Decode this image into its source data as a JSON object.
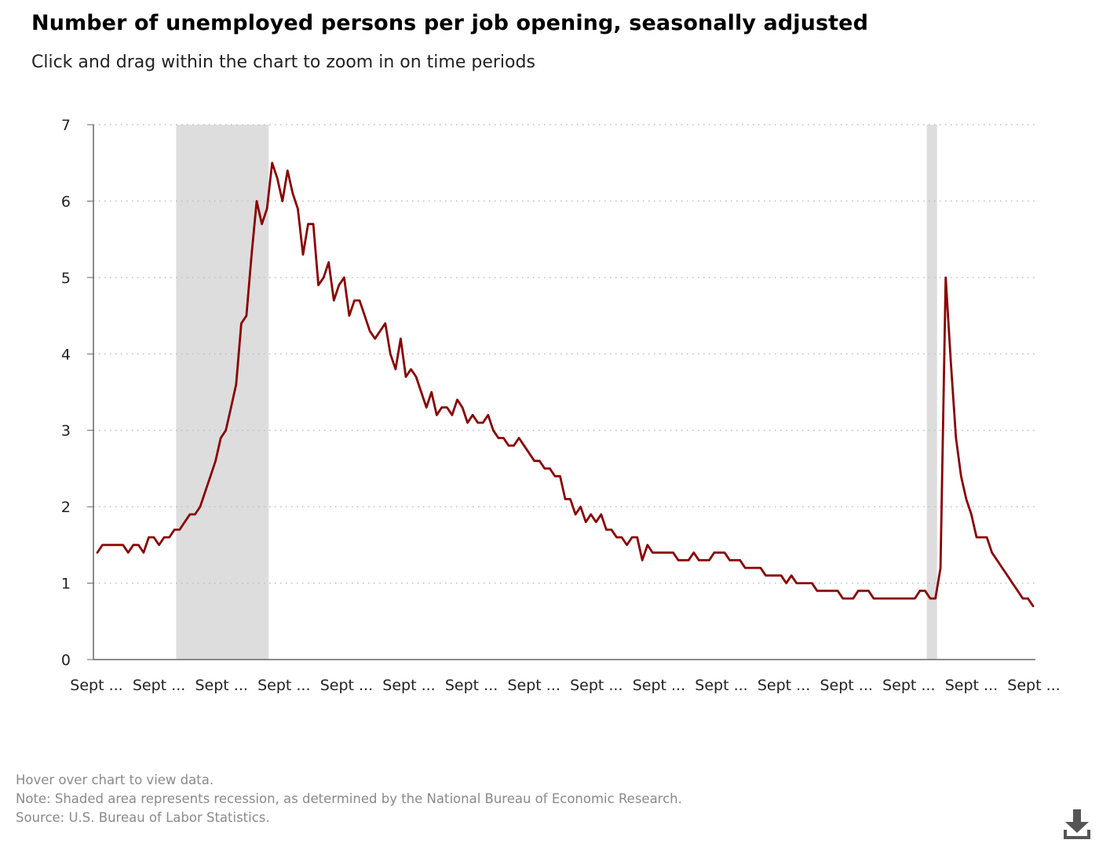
{
  "header": {
    "title": "Number of unemployed persons per job opening, seasonally adjusted",
    "subtitle": "Click and drag within the chart to zoom in on time periods"
  },
  "footer": {
    "hover_hint": "Hover over chart to view data.",
    "note": "Note: Shaded area represents recession, as determined by the National Bureau of Economic Research.",
    "source": "Source: U.S. Bureau of Labor Statistics."
  },
  "toolbar": {
    "download_icon": "download-icon"
  },
  "colors": {
    "line": "#8b0000",
    "recession": "#dddddd",
    "grid": "#bdbdbd",
    "axis": "#666666"
  },
  "chart_data": {
    "type": "line",
    "title": "Number of unemployed persons per job opening, seasonally adjusted",
    "xlabel": "",
    "ylabel": "",
    "ylim": [
      0,
      7
    ],
    "yticks": [
      0,
      1,
      2,
      3,
      4,
      5,
      6,
      7
    ],
    "xtick_labels": [
      "Sept ...",
      "Sept ...",
      "Sept ...",
      "Sept ...",
      "Sept ...",
      "Sept ...",
      "Sept ...",
      "Sept ...",
      "Sept ...",
      "Sept ...",
      "Sept ...",
      "Sept ...",
      "Sept ...",
      "Sept ...",
      "Sept ...",
      "Sept ..."
    ],
    "grid": true,
    "recessions": [
      [
        15.33,
        33.33
      ],
      [
        161.33,
        163.33
      ]
    ],
    "series": [
      {
        "values": [
          1.4,
          1.5,
          1.5,
          1.5,
          1.5,
          1.5,
          1.4,
          1.5,
          1.5,
          1.4,
          1.6,
          1.6,
          1.5,
          1.6,
          1.6,
          1.7,
          1.7,
          1.8,
          1.9,
          1.9,
          2.0,
          2.2,
          2.4,
          2.6,
          2.9,
          3.0,
          3.3,
          3.6,
          4.4,
          4.5,
          5.3,
          6.0,
          5.7,
          5.9,
          6.5,
          6.3,
          6.0,
          6.4,
          6.1,
          5.9,
          5.3,
          5.7,
          5.7,
          4.9,
          5.0,
          5.2,
          4.7,
          4.9,
          5.0,
          4.5,
          4.7,
          4.7,
          4.5,
          4.3,
          4.2,
          4.3,
          4.4,
          4.0,
          3.8,
          4.2,
          3.7,
          3.8,
          3.7,
          3.5,
          3.3,
          3.5,
          3.2,
          3.3,
          3.3,
          3.2,
          3.4,
          3.3,
          3.1,
          3.2,
          3.1,
          3.1,
          3.2,
          3.0,
          2.9,
          2.9,
          2.8,
          2.8,
          2.9,
          2.8,
          2.7,
          2.6,
          2.6,
          2.5,
          2.5,
          2.4,
          2.4,
          2.1,
          2.1,
          1.9,
          2.0,
          1.8,
          1.9,
          1.8,
          1.9,
          1.7,
          1.7,
          1.6,
          1.6,
          1.5,
          1.6,
          1.6,
          1.3,
          1.5,
          1.4,
          1.4,
          1.4,
          1.4,
          1.4,
          1.3,
          1.3,
          1.3,
          1.4,
          1.3,
          1.3,
          1.3,
          1.4,
          1.4,
          1.4,
          1.3,
          1.3,
          1.3,
          1.2,
          1.2,
          1.2,
          1.2,
          1.1,
          1.1,
          1.1,
          1.1,
          1.0,
          1.1,
          1.0,
          1.0,
          1.0,
          1.0,
          0.9,
          0.9,
          0.9,
          0.9,
          0.9,
          0.8,
          0.8,
          0.8,
          0.9,
          0.9,
          0.9,
          0.8,
          0.8,
          0.8,
          0.8,
          0.8,
          0.8,
          0.8,
          0.8,
          0.8,
          0.9,
          0.9,
          0.8,
          0.8,
          1.2,
          5.0,
          3.9,
          2.9,
          2.4,
          2.1,
          1.9,
          1.6,
          1.6,
          1.6,
          1.4,
          1.3,
          1.2,
          1.1,
          1.0,
          0.9,
          0.8,
          0.8,
          0.7
        ]
      }
    ]
  }
}
